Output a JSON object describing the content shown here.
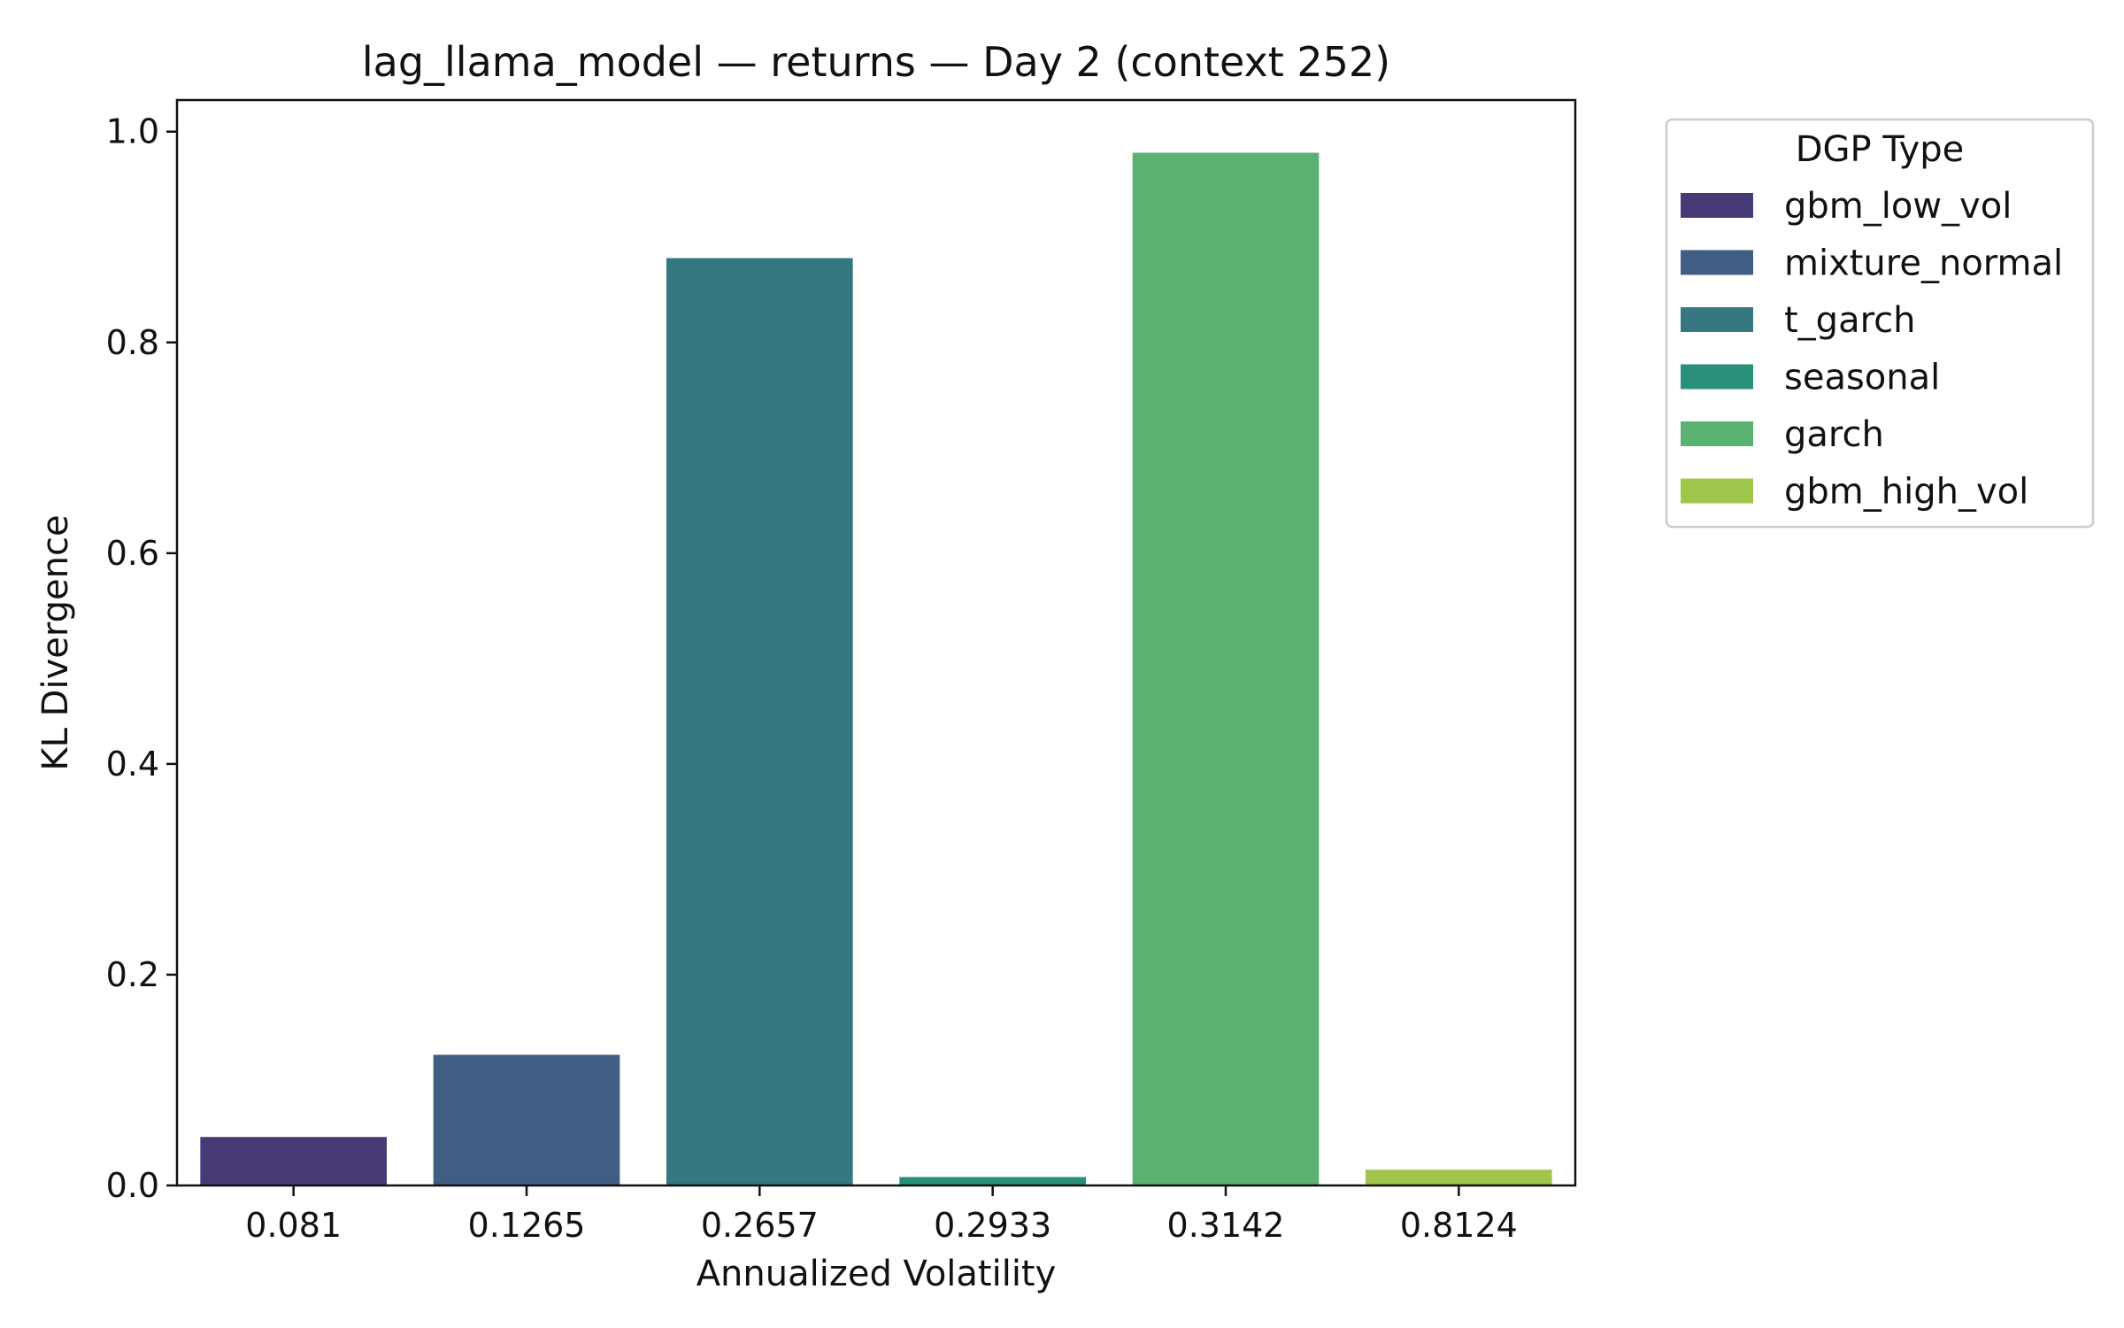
{
  "chart_data": {
    "type": "bar",
    "title": "lag_llama_model — returns — Day 2 (context 252)",
    "xlabel": "Annualized Volatility",
    "ylabel": "KL Divergence",
    "categories": [
      "0.081",
      "0.1265",
      "0.2657",
      "0.2933",
      "0.3142",
      "0.8124"
    ],
    "values": [
      0.046,
      0.124,
      0.88,
      0.008,
      0.98,
      0.015
    ],
    "series_names": [
      "gbm_low_vol",
      "mixture_normal",
      "t_garch",
      "seasonal",
      "garch",
      "gbm_high_vol"
    ],
    "colors": [
      "#483a76",
      "#425d84",
      "#357882",
      "#2a8f7a",
      "#5ab272",
      "#a0c54b"
    ],
    "ylim": [
      0,
      1.03
    ],
    "yticks": [
      0.0,
      0.2,
      0.4,
      0.6,
      0.8,
      1.0
    ],
    "ytick_labels": [
      "0.0",
      "0.2",
      "0.4",
      "0.6",
      "0.8",
      "1.0"
    ],
    "grid": false,
    "legend": {
      "title": "DGP Type",
      "placement": "outside-right-top",
      "entries": [
        "gbm_low_vol",
        "mixture_normal",
        "t_garch",
        "seasonal",
        "garch",
        "gbm_high_vol"
      ]
    }
  }
}
